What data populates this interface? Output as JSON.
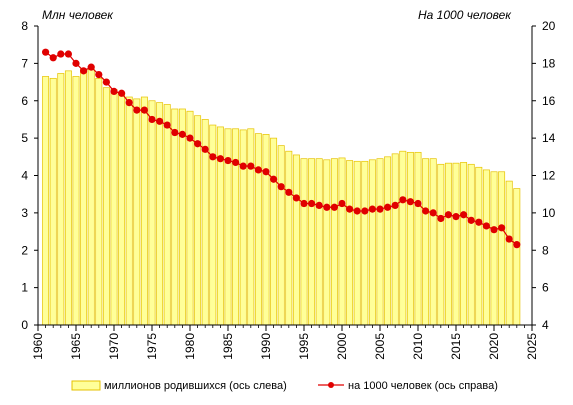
{
  "chart_data": {
    "type": "bar+line",
    "left_axis_unit": "Млн  человек",
    "right_axis_unit": "На 1000 человек",
    "xlim": [
      1960,
      2025
    ],
    "x_ticks": [
      "1960",
      "1965",
      "1970",
      "1975",
      "1980",
      "1985",
      "1990",
      "1995",
      "2000",
      "2005",
      "2010",
      "2015",
      "2020",
      "2025"
    ],
    "ylim_left": [
      0,
      8
    ],
    "y_ticks_left": [
      "0",
      "1",
      "2",
      "3",
      "4",
      "5",
      "6",
      "7",
      "8"
    ],
    "ylim_right": [
      4,
      20
    ],
    "y_ticks_right": [
      "4",
      "6",
      "8",
      "10",
      "12",
      "14",
      "16",
      "18",
      "20"
    ],
    "grid": false,
    "legend_position": "bottom",
    "colors": {
      "bar_fill": "#ffff99",
      "bar_stroke": "#e6c200",
      "line": "#e00000"
    },
    "years": [
      1961,
      1962,
      1963,
      1964,
      1965,
      1966,
      1967,
      1968,
      1969,
      1970,
      1971,
      1972,
      1973,
      1974,
      1975,
      1976,
      1977,
      1978,
      1979,
      1980,
      1981,
      1982,
      1983,
      1984,
      1985,
      1986,
      1987,
      1988,
      1989,
      1990,
      1991,
      1992,
      1993,
      1994,
      1995,
      1996,
      1997,
      1998,
      1999,
      2000,
      2001,
      2002,
      2003,
      2004,
      2005,
      2006,
      2007,
      2008,
      2009,
      2010,
      2011,
      2012,
      2013,
      2014,
      2015,
      2016,
      2017,
      2018,
      2019,
      2020,
      2021,
      2022,
      2023
    ],
    "series": [
      {
        "name": "миллионов  родившихся (ось слева)",
        "axis": "left",
        "kind": "bar",
        "values": [
          6.65,
          6.6,
          6.73,
          6.8,
          6.65,
          6.85,
          6.85,
          6.6,
          6.35,
          6.3,
          6.2,
          6.1,
          6.05,
          6.1,
          6.0,
          5.95,
          5.9,
          5.78,
          5.78,
          5.72,
          5.6,
          5.5,
          5.35,
          5.3,
          5.25,
          5.25,
          5.22,
          5.25,
          5.12,
          5.1,
          5.0,
          4.8,
          4.65,
          4.55,
          4.45,
          4.45,
          4.45,
          4.42,
          4.45,
          4.47,
          4.4,
          4.38,
          4.38,
          4.42,
          4.45,
          4.5,
          4.58,
          4.65,
          4.62,
          4.62,
          4.45,
          4.45,
          4.3,
          4.33,
          4.33,
          4.35,
          4.3,
          4.22,
          4.15,
          4.1,
          4.1,
          3.85,
          3.65
        ]
      },
      {
        "name": "на 1000 человек (ось справа)",
        "axis": "right",
        "kind": "line",
        "values": [
          18.6,
          18.3,
          18.5,
          18.5,
          18.0,
          17.6,
          17.8,
          17.4,
          17.0,
          16.5,
          16.4,
          15.9,
          15.5,
          15.5,
          15.0,
          14.9,
          14.7,
          14.3,
          14.2,
          14.0,
          13.7,
          13.4,
          13.0,
          12.9,
          12.8,
          12.7,
          12.5,
          12.5,
          12.3,
          12.2,
          11.8,
          11.4,
          11.1,
          10.8,
          10.5,
          10.5,
          10.4,
          10.3,
          10.3,
          10.5,
          10.2,
          10.1,
          10.1,
          10.2,
          10.2,
          10.3,
          10.4,
          10.7,
          10.6,
          10.5,
          10.1,
          10.0,
          9.7,
          9.9,
          9.8,
          9.9,
          9.6,
          9.5,
          9.3,
          9.1,
          9.2,
          8.6,
          8.3
        ]
      }
    ]
  }
}
